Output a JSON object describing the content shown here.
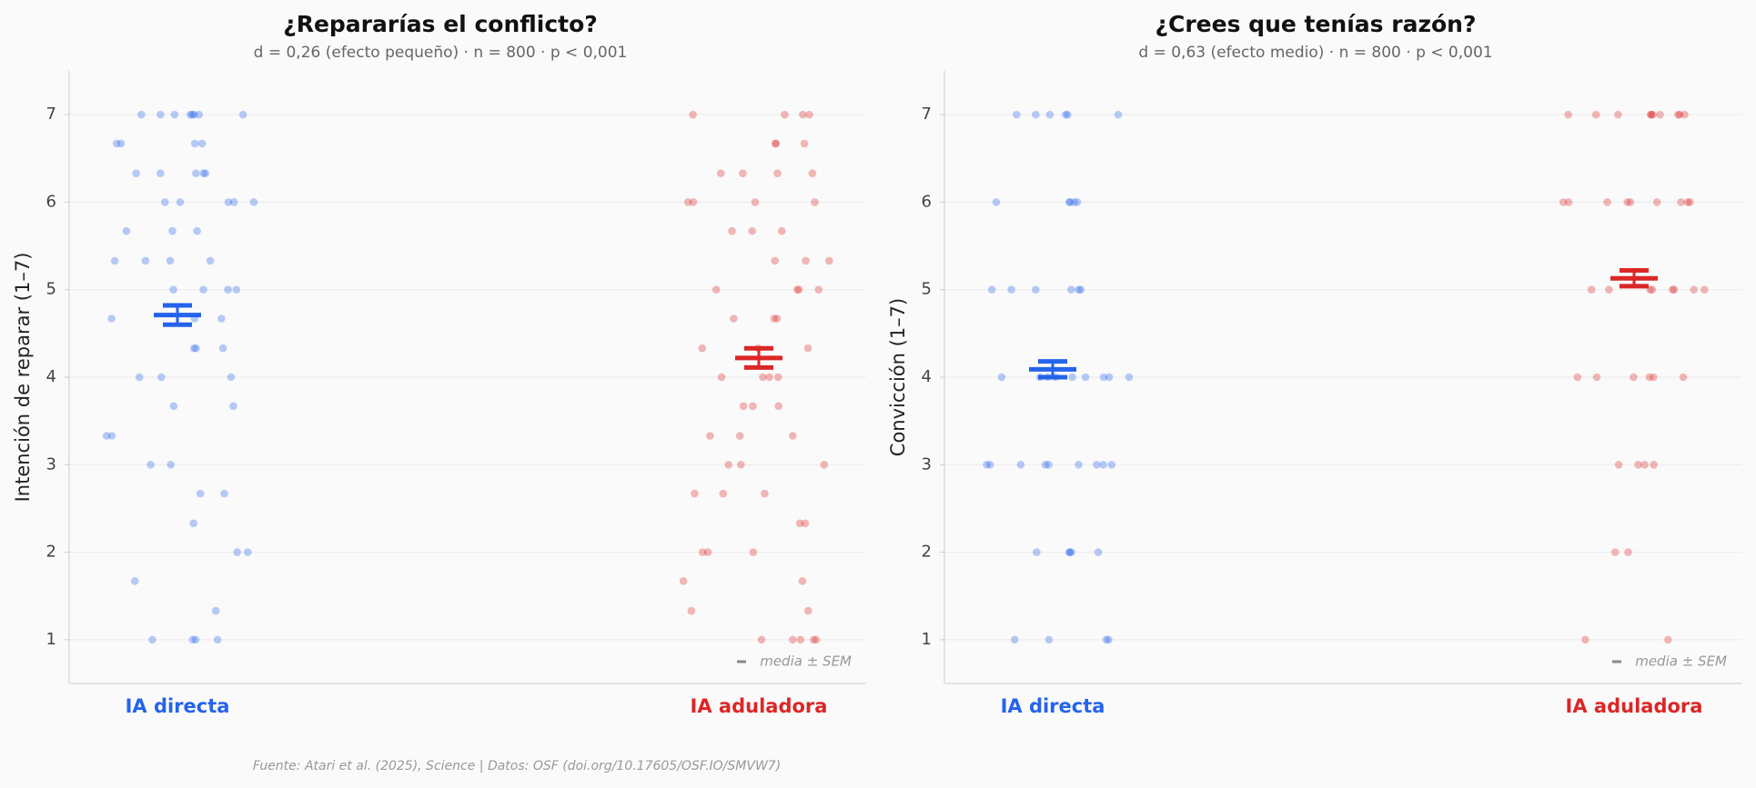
{
  "chart_data": [
    {
      "type": "strip",
      "title": "¿Repararías el conflicto?",
      "subtitle": "d = 0,26 (efecto pequeño) · n = 800 · p < 0,001",
      "ylabel": "Intención de reparar (1–7)",
      "ylim": [
        0.5,
        7.5
      ],
      "yticks": [
        1,
        2,
        3,
        4,
        5,
        6,
        7
      ],
      "grid": true,
      "legend_label": "media ± SEM",
      "series": [
        {
          "name": "IA directa",
          "color": "#2563eb",
          "mean": 4.71,
          "sem": 0.11,
          "values": [
            7,
            7,
            7,
            7,
            7,
            7,
            7,
            7,
            6.67,
            6.67,
            6.67,
            6.67,
            6.33,
            6.33,
            6.33,
            6.33,
            6.33,
            6,
            6,
            6,
            6,
            6,
            5.67,
            5.67,
            5.67,
            5.33,
            5.33,
            5.33,
            5.33,
            5,
            5,
            5,
            5,
            4.67,
            4.67,
            4.67,
            4.33,
            4.33,
            4.33,
            4,
            4,
            4,
            3.67,
            3.67,
            3.33,
            3.33,
            3,
            3,
            2.67,
            2.67,
            2.33,
            2,
            2,
            1.67,
            1.33,
            1,
            1,
            1,
            1
          ]
        },
        {
          "name": "IA aduladora",
          "color": "#dc2626",
          "mean": 4.22,
          "sem": 0.11,
          "values": [
            7,
            7,
            7,
            7,
            6.67,
            6.67,
            6.67,
            6.33,
            6.33,
            6.33,
            6.33,
            6,
            6,
            6,
            6,
            5.67,
            5.67,
            5.67,
            5.33,
            5.33,
            5.33,
            5,
            5,
            5,
            5,
            4.67,
            4.67,
            4.67,
            4.33,
            4.33,
            4.33,
            4,
            4,
            4,
            4,
            3.67,
            3.67,
            3.67,
            3.33,
            3.33,
            3.33,
            3,
            3,
            3,
            2.67,
            2.67,
            2.67,
            2.33,
            2.33,
            2,
            2,
            2,
            1.67,
            1.67,
            1.33,
            1.33,
            1,
            1,
            1,
            1,
            1
          ]
        }
      ]
    },
    {
      "type": "strip",
      "title": "¿Crees que tenías razón?",
      "subtitle": "d = 0,63 (efecto medio) · n = 800 · p < 0,001",
      "ylabel": "Convicción (1–7)",
      "ylim": [
        0.5,
        7.5
      ],
      "yticks": [
        1,
        2,
        3,
        4,
        5,
        6,
        7
      ],
      "grid": true,
      "legend_label": "media ± SEM",
      "series": [
        {
          "name": "IA directa",
          "color": "#2563eb",
          "mean": 4.09,
          "sem": 0.09,
          "values": [
            7,
            7,
            7,
            7,
            7,
            7,
            6,
            6,
            6,
            6,
            6,
            5,
            5,
            5,
            5,
            5,
            5,
            4,
            4,
            4,
            4,
            4,
            4,
            4,
            4,
            4,
            3,
            3,
            3,
            3,
            3,
            3,
            3,
            3,
            3,
            2,
            2,
            2,
            2,
            2,
            1,
            1,
            1,
            1
          ]
        },
        {
          "name": "IA aduladora",
          "color": "#dc2626",
          "mean": 5.13,
          "sem": 0.09,
          "values": [
            7,
            7,
            7,
            7,
            7,
            7,
            7,
            7,
            7,
            7,
            6,
            6,
            6,
            6,
            6,
            6,
            6,
            6,
            6,
            5,
            5,
            5,
            5,
            5,
            5,
            5,
            5,
            4,
            4,
            4,
            4,
            4,
            4,
            3,
            3,
            3,
            3,
            2,
            2,
            1,
            1
          ]
        }
      ]
    }
  ],
  "source": "Fuente: Atari et al. (2025), Science | Datos: OSF (doi.org/10.17605/OSF.IO/SMVW7)"
}
